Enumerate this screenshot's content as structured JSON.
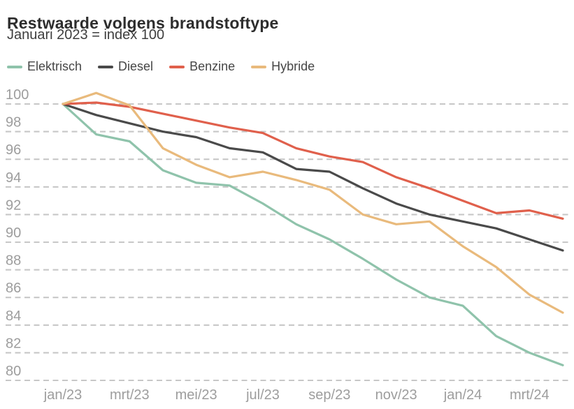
{
  "header": {
    "title": "Restwaarde volgens brandstoftype",
    "subtitle": "Januari 2023 = index 100"
  },
  "chart_data": {
    "type": "line",
    "title": "Restwaarde volgens brandstoftype",
    "subtitle": "Januari 2023 = index 100",
    "x": [
      "jan/23",
      "feb/23",
      "mrt/23",
      "apr/23",
      "mei/23",
      "jun/23",
      "jul/23",
      "aug/23",
      "sep/23",
      "okt/23",
      "nov/23",
      "dec/23",
      "jan/24",
      "feb/24",
      "mrt/24",
      "apr/24"
    ],
    "x_tick_labels": [
      "jan/23",
      "mrt/23",
      "mei/23",
      "jul/23",
      "sep/23",
      "nov/23",
      "jan/24",
      "mrt/24"
    ],
    "yticks": [
      100,
      98,
      96,
      94,
      92,
      90,
      88,
      86,
      84,
      82,
      80
    ],
    "ylim": [
      80,
      101
    ],
    "grid": "horizontal-dashed",
    "legend_position": "top-left",
    "series": [
      {
        "name": "Elektrisch",
        "color": "#8fc3ab",
        "values": [
          100,
          97.8,
          97.3,
          95.2,
          94.3,
          94.1,
          92.8,
          91.3,
          90.2,
          88.8,
          87.3,
          86.0,
          85.4,
          83.2,
          82.0,
          81.1
        ]
      },
      {
        "name": "Diesel",
        "color": "#4a4a4a",
        "values": [
          100,
          99.2,
          98.6,
          98.0,
          97.6,
          96.8,
          96.5,
          95.3,
          95.1,
          93.9,
          92.8,
          92.0,
          91.5,
          91.0,
          90.2,
          89.4
        ]
      },
      {
        "name": "Benzine",
        "color": "#e0604c",
        "values": [
          100,
          100.1,
          99.8,
          99.3,
          98.8,
          98.3,
          97.9,
          96.8,
          96.2,
          95.8,
          94.7,
          93.9,
          93.0,
          92.1,
          92.3,
          91.7
        ]
      },
      {
        "name": "Hybride",
        "color": "#e9ba7c",
        "values": [
          100,
          100.8,
          99.9,
          96.8,
          95.6,
          94.7,
          95.1,
          94.5,
          93.8,
          92.0,
          91.3,
          91.5,
          89.7,
          88.2,
          86.2,
          84.9
        ]
      }
    ]
  },
  "axis_style": {
    "label_color": "#9d9d9d",
    "grid_color": "#c7c7c7"
  }
}
